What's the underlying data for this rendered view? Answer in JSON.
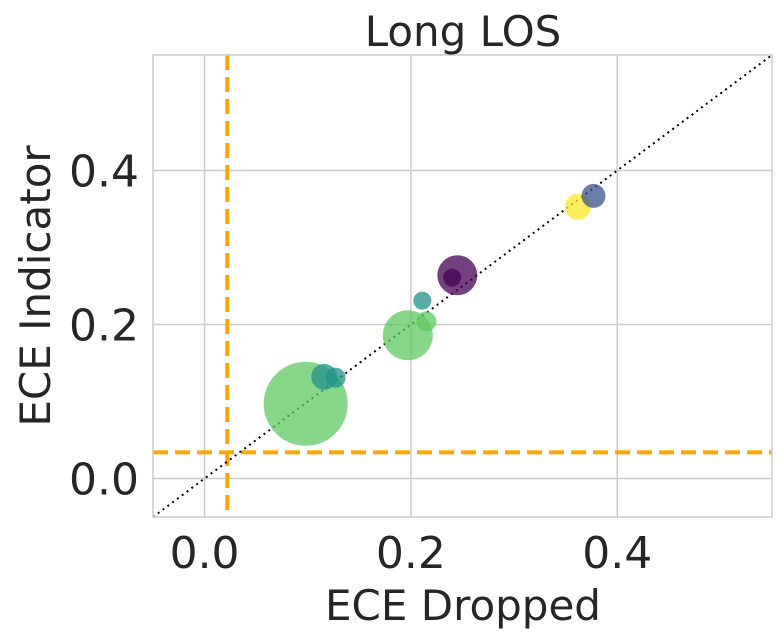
{
  "chart_data": {
    "type": "scatter",
    "title": "Long LOS",
    "xlabel": "ECE Dropped",
    "ylabel": "ECE Indicator",
    "xlim": [
      -0.05,
      0.55
    ],
    "ylim": [
      -0.05,
      0.55
    ],
    "xticks": [
      0.0,
      0.2,
      0.4
    ],
    "yticks": [
      0.0,
      0.2,
      0.4
    ],
    "xtick_labels": [
      "0.0",
      "0.2",
      "0.4"
    ],
    "ytick_labels": [
      "0.0",
      "0.2",
      "0.4"
    ],
    "grid": true,
    "diagonal": {
      "style": "dotted",
      "color": "#000000",
      "from": [
        -0.05,
        -0.05
      ],
      "to": [
        0.55,
        0.55
      ]
    },
    "reference_lines": {
      "vertical_x": 0.022,
      "horizontal_y": 0.034,
      "color": "#FFA500",
      "style": "dashed"
    },
    "points": [
      {
        "x": 0.098,
        "y": 0.097,
        "size": 42,
        "color": "#5ec962"
      },
      {
        "x": 0.197,
        "y": 0.186,
        "size": 25,
        "color": "#5ec962"
      },
      {
        "x": 0.245,
        "y": 0.264,
        "size": 20,
        "color": "#440154"
      },
      {
        "x": 0.116,
        "y": 0.132,
        "size": 13,
        "color": "#21918c"
      },
      {
        "x": 0.362,
        "y": 0.353,
        "size": 13,
        "color": "#fde725"
      },
      {
        "x": 0.377,
        "y": 0.367,
        "size": 12,
        "color": "#3b528b"
      },
      {
        "x": 0.127,
        "y": 0.131,
        "size": 10,
        "color": "#21918c"
      },
      {
        "x": 0.215,
        "y": 0.204,
        "size": 10,
        "color": "#5ec962"
      },
      {
        "x": 0.24,
        "y": 0.261,
        "size": 9,
        "color": "#440154"
      },
      {
        "x": 0.211,
        "y": 0.231,
        "size": 9,
        "color": "#21918c"
      }
    ]
  }
}
